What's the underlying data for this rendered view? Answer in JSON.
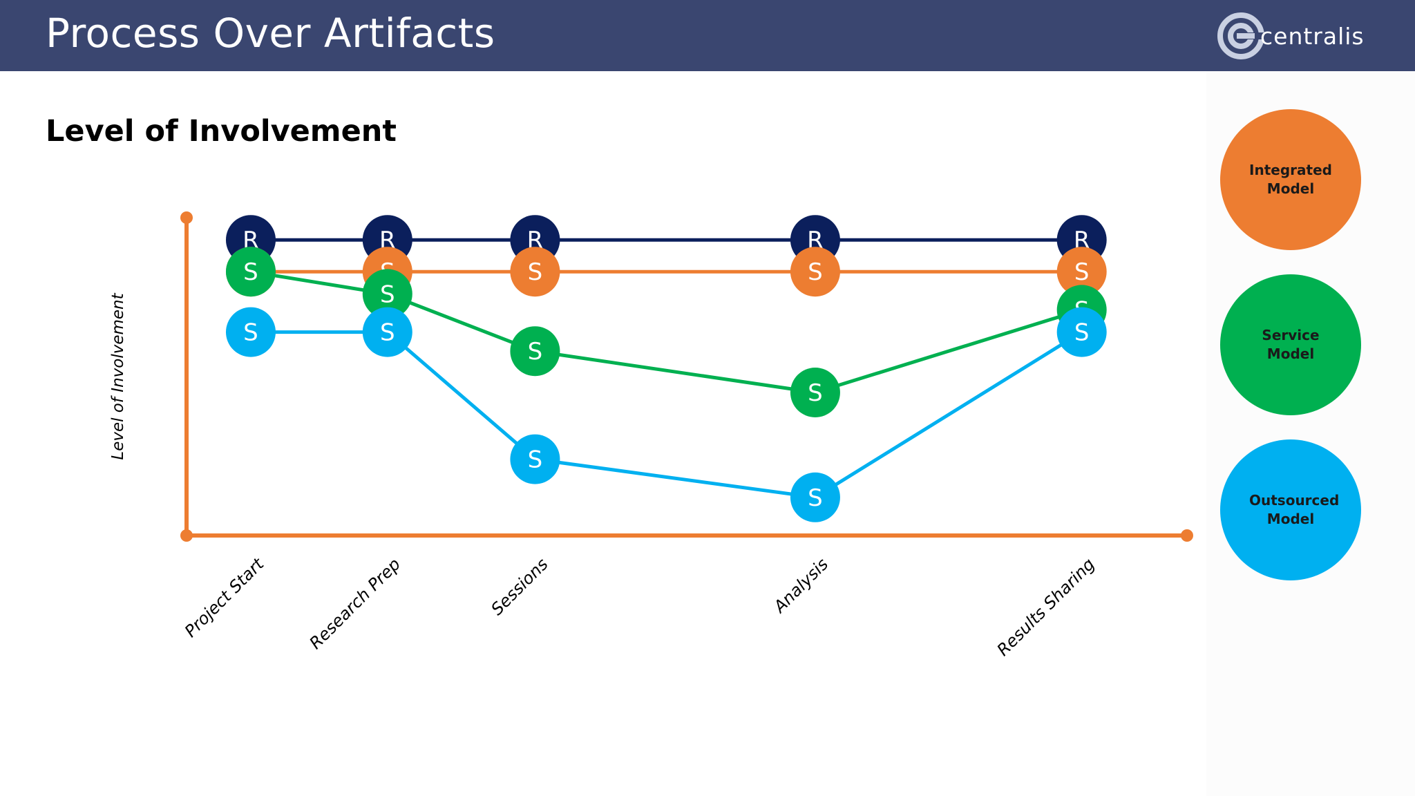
{
  "header": {
    "title": "Process Over Artifacts",
    "logo_text": "centralis"
  },
  "section": {
    "heading": "Level of Involvement"
  },
  "legend": [
    {
      "label": "Integrated\nModel",
      "color": "#ed7d31"
    },
    {
      "label": "Service\nModel",
      "color": "#00b050"
    },
    {
      "label": "Outsourced\nModel",
      "color": "#00b0f0"
    }
  ],
  "chart_data": {
    "type": "line",
    "ylabel": "Level of Involvement",
    "xlabel": "",
    "categories": [
      "Project Start",
      "Research Prep",
      "Sessions",
      "Analysis",
      "Results Sharing"
    ],
    "x": [
      0,
      1,
      2.08,
      4.13,
      6.08
    ],
    "xlim": [
      -0.47,
      6.85
    ],
    "ylim": [
      0,
      10
    ],
    "series": [
      {
        "color": "#0b1f5c",
        "marker_label": "R",
        "values": [
          9.3,
          9.3,
          9.3,
          9.3,
          9.3
        ]
      },
      {
        "color": "#ed7d31",
        "marker_label": "S",
        "values": [
          8.3,
          8.3,
          8.3,
          8.3,
          8.3
        ]
      },
      {
        "color": "#00b050",
        "marker_label": "S",
        "values": [
          8.3,
          7.6,
          5.8,
          4.5,
          7.1
        ]
      },
      {
        "color": "#00b0f0",
        "marker_label": "S",
        "values": [
          6.4,
          6.4,
          2.4,
          1.2,
          6.4
        ]
      }
    ],
    "axis_color": "#ed7d31",
    "grid": false
  }
}
